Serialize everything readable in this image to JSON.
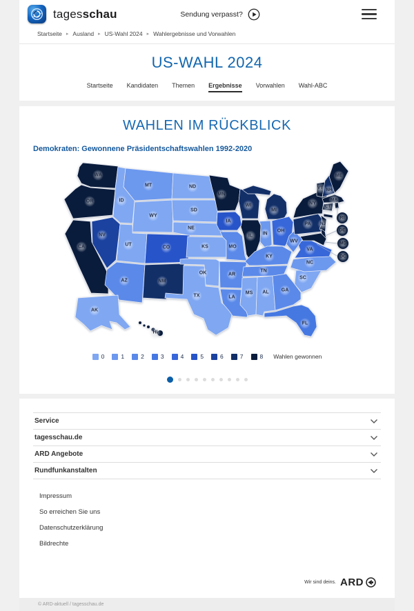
{
  "header": {
    "brand_prefix": "tages",
    "brand_suffix": "schau",
    "missed_show_label": "Sendung verpasst?",
    "breadcrumb": [
      "Startseite",
      "Ausland",
      "US-Wahl 2024",
      "Wahlergebnisse und Vorwahlen"
    ]
  },
  "page_title": "US-WAHL 2024",
  "nav": {
    "items": [
      {
        "label": "Startseite",
        "active": false
      },
      {
        "label": "Kandidaten",
        "active": false
      },
      {
        "label": "Themen",
        "active": false
      },
      {
        "label": "Ergebnisse",
        "active": true
      },
      {
        "label": "Vorwahlen",
        "active": false
      },
      {
        "label": "Wahl-ABC",
        "active": false
      }
    ]
  },
  "widget": {
    "title": "WAHLEN IM RÜCKBLICK",
    "subtitle": "Demokraten: Gewonnene Präsidentschaftswahlen 1992-2020",
    "legend_caption": "Wahlen gewonnen",
    "carousel": {
      "total_dots": 10,
      "active_index": 0,
      "active_color": "#0b5ea8",
      "inactive_color": "#dcdcdc"
    }
  },
  "chart_data": {
    "type": "choropleth-map",
    "title": "Demokraten: Gewonnene Präsidentschaftswahlen 1992-2020",
    "legend": {
      "values": [
        0,
        1,
        2,
        3,
        4,
        5,
        6,
        7,
        8
      ],
      "colors": [
        "#7FA7F2",
        "#6C98EE",
        "#5A89E9",
        "#4678E2",
        "#3767D9",
        "#2754C9",
        "#1B429F",
        "#122F68",
        "#0A1C3C"
      ],
      "caption": "Wahlen gewonnen"
    },
    "callout_states": [
      "RI",
      "DE",
      "MD",
      "DC"
    ],
    "states": [
      {
        "id": "WA",
        "wins": 8
      },
      {
        "id": "OR",
        "wins": 8
      },
      {
        "id": "CA",
        "wins": 8
      },
      {
        "id": "NV",
        "wins": 6
      },
      {
        "id": "ID",
        "wins": 0
      },
      {
        "id": "MT",
        "wins": 1
      },
      {
        "id": "WY",
        "wins": 0
      },
      {
        "id": "UT",
        "wins": 0
      },
      {
        "id": "CO",
        "wins": 5
      },
      {
        "id": "AZ",
        "wins": 2
      },
      {
        "id": "NM",
        "wins": 7
      },
      {
        "id": "ND",
        "wins": 0
      },
      {
        "id": "SD",
        "wins": 0
      },
      {
        "id": "NE",
        "wins": 0
      },
      {
        "id": "KS",
        "wins": 0
      },
      {
        "id": "OK",
        "wins": 0
      },
      {
        "id": "TX",
        "wins": 0
      },
      {
        "id": "MN",
        "wins": 8
      },
      {
        "id": "IA",
        "wins": 5
      },
      {
        "id": "MO",
        "wins": 2
      },
      {
        "id": "AR",
        "wins": 2
      },
      {
        "id": "LA",
        "wins": 2
      },
      {
        "id": "WI",
        "wins": 7
      },
      {
        "id": "IL",
        "wins": 8
      },
      {
        "id": "MI",
        "wins": 7
      },
      {
        "id": "IN",
        "wins": 1
      },
      {
        "id": "OH",
        "wins": 4
      },
      {
        "id": "KY",
        "wins": 2
      },
      {
        "id": "TN",
        "wins": 2
      },
      {
        "id": "MS",
        "wins": 0
      },
      {
        "id": "AL",
        "wins": 0
      },
      {
        "id": "GA",
        "wins": 2
      },
      {
        "id": "FL",
        "wins": 3
      },
      {
        "id": "SC",
        "wins": 0
      },
      {
        "id": "NC",
        "wins": 1
      },
      {
        "id": "VA",
        "wins": 4
      },
      {
        "id": "WV",
        "wins": 2
      },
      {
        "id": "PA",
        "wins": 7
      },
      {
        "id": "NY",
        "wins": 8
      },
      {
        "id": "NJ",
        "wins": 8
      },
      {
        "id": "VT",
        "wins": 8
      },
      {
        "id": "NH",
        "wins": 7
      },
      {
        "id": "ME",
        "wins": 8
      },
      {
        "id": "MA",
        "wins": 8
      },
      {
        "id": "CT",
        "wins": 8
      },
      {
        "id": "RI",
        "wins": 8
      },
      {
        "id": "DE",
        "wins": 8
      },
      {
        "id": "MD",
        "wins": 8
      },
      {
        "id": "DC",
        "wins": 8
      },
      {
        "id": "AK",
        "wins": 0
      },
      {
        "id": "HI",
        "wins": 8
      }
    ]
  },
  "footer": {
    "accordions": [
      "Service",
      "tagesschau.de",
      "ARD Angebote",
      "Rundfunkanstalten"
    ],
    "links": [
      "Impressum",
      "So erreichen Sie uns",
      "Datenschutzerklärung",
      "Bildrechte"
    ],
    "brand_claim": "Wir sind deins.",
    "brand_name": "ARD",
    "copyright": "© ARD-aktuell / tagesschau.de"
  }
}
